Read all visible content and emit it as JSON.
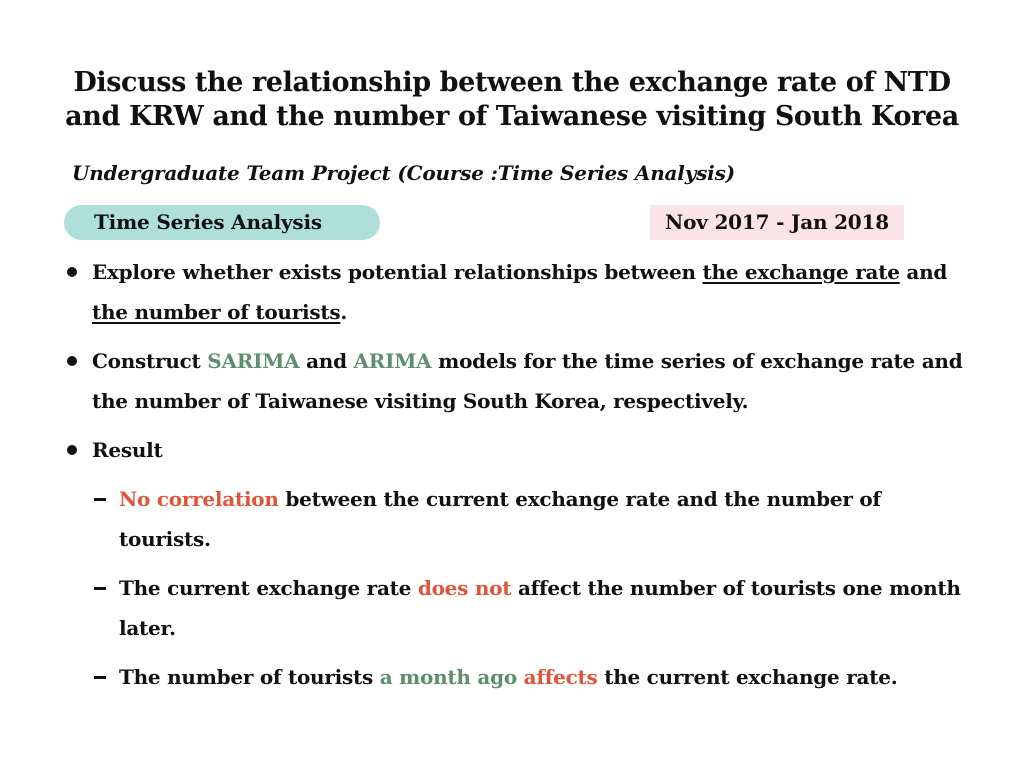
{
  "title_line1": "Discuss the relationship between the exchange rate of NTD",
  "title_line2": "and KRW and the number of Taiwanese visiting South Korea",
  "subtitle": "Undergraduate Team Project (Course :Time Series Analysis)",
  "badge": "Time Series Analysis",
  "period": "Nov 2017 - Jan 2018",
  "colors": {
    "badge_bg": "#aedfd8",
    "period_bg": "#fbe4e7",
    "accent_green": "#5e8f6d",
    "accent_red": "#e0553a"
  },
  "bullets": [
    {
      "t1": "Explore whether exists potential relationships between ",
      "u1": "the exchange rate",
      "t2": " and ",
      "u2": "the number of tourists",
      "t3": "."
    },
    {
      "t1": "Construct ",
      "g1": "SARIMA",
      "t2": " and ",
      "g2": "ARIMA",
      "t3": " models for the time series of exchange rate and the number of Taiwanese visiting South Korea, respectively."
    },
    {
      "t1": "Result"
    }
  ],
  "results": [
    {
      "r1": "No correlation",
      "t1": " between the current exchange rate and the number of tourists."
    },
    {
      "t1": "The current exchange rate ",
      "r1": "does not",
      "t2": " affect the number of tourists one month later."
    },
    {
      "t1": "The number of tourists ",
      "g1": "a month ago",
      "t2": " ",
      "r1": "affects",
      "t3": " the current exchange rate."
    }
  ]
}
